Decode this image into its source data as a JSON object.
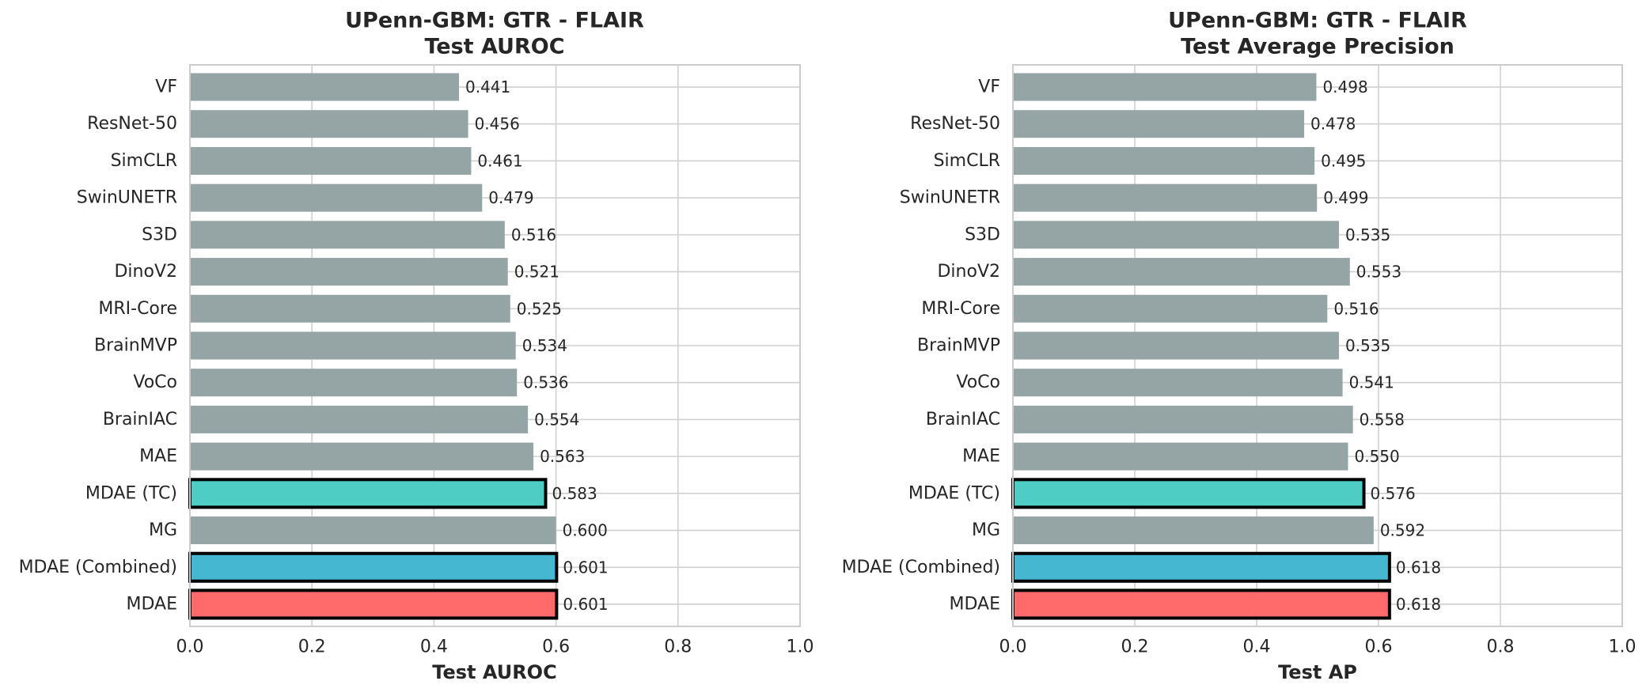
{
  "colors": {
    "gray": "#95a5a6",
    "teal": "#4ecdc4",
    "blue": "#45b7d1",
    "red": "#ff6b6b",
    "grid": "#d0d0d0",
    "frame": "#cccccc",
    "outline": "#000000"
  },
  "chart_data": [
    {
      "type": "bar",
      "orientation": "horizontal",
      "title": "UPenn-GBM: GTR - FLAIR",
      "subtitle": "Test AUROC",
      "xlabel": "Test AUROC",
      "xlim": [
        0.0,
        1.0
      ],
      "xticks": [
        "0.0",
        "0.2",
        "0.4",
        "0.6",
        "0.8",
        "1.0"
      ],
      "grid": true,
      "categories": [
        "VF",
        "ResNet-50",
        "SimCLR",
        "SwinUNETR",
        "S3D",
        "DinoV2",
        "MRI-Core",
        "BrainMVP",
        "VoCo",
        "BrainIAC",
        "MAE",
        "MDAE (TC)",
        "MG",
        "MDAE (Combined)",
        "MDAE"
      ],
      "values": [
        0.441,
        0.456,
        0.461,
        0.479,
        0.516,
        0.521,
        0.525,
        0.534,
        0.536,
        0.554,
        0.563,
        0.583,
        0.6,
        0.601,
        0.601
      ],
      "value_labels": [
        "0.441",
        "0.456",
        "0.461",
        "0.479",
        "0.516",
        "0.521",
        "0.525",
        "0.534",
        "0.536",
        "0.554",
        "0.563",
        "0.583",
        "0.600",
        "0.601",
        "0.601"
      ],
      "bar_colors": [
        "gray",
        "gray",
        "gray",
        "gray",
        "gray",
        "gray",
        "gray",
        "gray",
        "gray",
        "gray",
        "gray",
        "teal",
        "gray",
        "blue",
        "red"
      ],
      "highlighted": [
        "MDAE (TC)",
        "MDAE (Combined)",
        "MDAE"
      ]
    },
    {
      "type": "bar",
      "orientation": "horizontal",
      "title": "UPenn-GBM: GTR - FLAIR",
      "subtitle": "Test Average Precision",
      "xlabel": "Test AP",
      "xlim": [
        0.0,
        1.0
      ],
      "xticks": [
        "0.0",
        "0.2",
        "0.4",
        "0.6",
        "0.8",
        "1.0"
      ],
      "grid": true,
      "categories": [
        "VF",
        "ResNet-50",
        "SimCLR",
        "SwinUNETR",
        "S3D",
        "DinoV2",
        "MRI-Core",
        "BrainMVP",
        "VoCo",
        "BrainIAC",
        "MAE",
        "MDAE (TC)",
        "MG",
        "MDAE (Combined)",
        "MDAE"
      ],
      "values": [
        0.498,
        0.478,
        0.495,
        0.499,
        0.535,
        0.553,
        0.516,
        0.535,
        0.541,
        0.558,
        0.55,
        0.576,
        0.592,
        0.618,
        0.618
      ],
      "value_labels": [
        "0.498",
        "0.478",
        "0.495",
        "0.499",
        "0.535",
        "0.553",
        "0.516",
        "0.535",
        "0.541",
        "0.558",
        "0.550",
        "0.576",
        "0.592",
        "0.618",
        "0.618"
      ],
      "bar_colors": [
        "gray",
        "gray",
        "gray",
        "gray",
        "gray",
        "gray",
        "gray",
        "gray",
        "gray",
        "gray",
        "gray",
        "teal",
        "gray",
        "blue",
        "red"
      ],
      "highlighted": [
        "MDAE (TC)",
        "MDAE (Combined)",
        "MDAE"
      ]
    }
  ]
}
